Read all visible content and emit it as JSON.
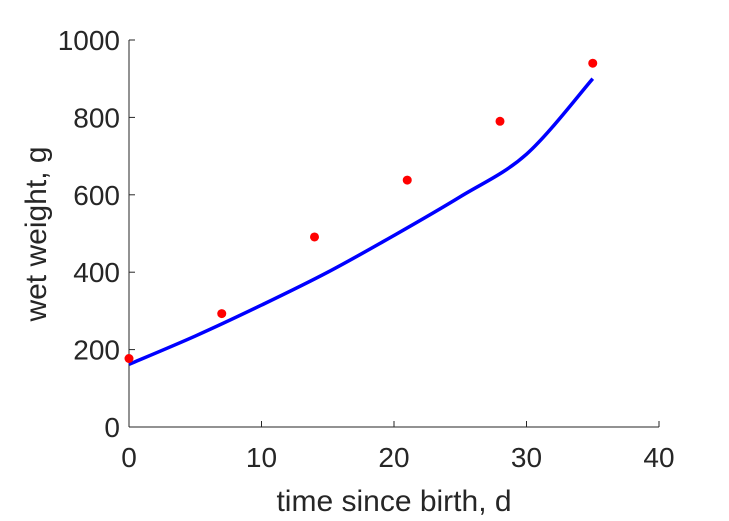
{
  "chart_data": {
    "type": "scatter",
    "title": "",
    "xlabel": "time since birth, d",
    "ylabel": "wet weight, g",
    "xlim": [
      0,
      40
    ],
    "ylim": [
      0,
      1000
    ],
    "xticks": [
      0,
      10,
      20,
      30,
      40
    ],
    "yticks": [
      0,
      200,
      400,
      600,
      800,
      1000
    ],
    "grid": false,
    "legend": "none",
    "series": [
      {
        "kind": "scatter",
        "color": "#ff0000",
        "x": [
          0,
          7,
          14,
          21,
          28,
          35
        ],
        "y": [
          177,
          293,
          491,
          638,
          790,
          940
        ]
      },
      {
        "kind": "line",
        "color": "#0000ff",
        "x": [
          0,
          5,
          10,
          15,
          20,
          25,
          30,
          35
        ],
        "y": [
          162,
          235,
          315,
          400,
          495,
          595,
          705,
          900
        ]
      }
    ]
  }
}
